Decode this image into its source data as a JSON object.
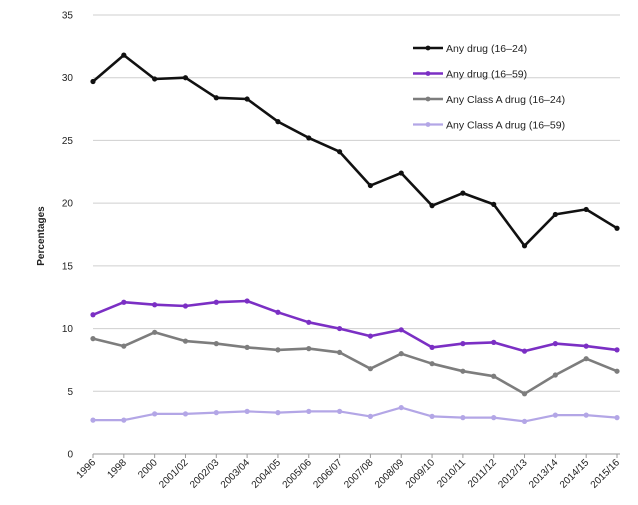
{
  "chart_data": {
    "type": "line",
    "ylabel": "Percentages",
    "ylim": [
      0,
      35
    ],
    "yticks": [
      0,
      5,
      10,
      15,
      20,
      25,
      30,
      35
    ],
    "grid": "horizontal",
    "legend_position": "top-right",
    "categories": [
      "1996",
      "1998",
      "2000",
      "2001/02",
      "2002/03",
      "2003/04",
      "2004/05",
      "2005/06",
      "2006/07",
      "2007/08",
      "2008/09",
      "2009/10",
      "2010/11",
      "2011/12",
      "2012/13",
      "2013/14",
      "2014/15",
      "2015/16"
    ],
    "series": [
      {
        "name": "Any drug (16–24)",
        "color": "#111111",
        "width": 2.6,
        "values": [
          29.7,
          31.8,
          29.9,
          30.0,
          28.4,
          28.3,
          26.5,
          25.2,
          24.1,
          21.4,
          22.4,
          19.8,
          20.8,
          19.9,
          16.6,
          19.1,
          19.5,
          18.0
        ]
      },
      {
        "name": "Any drug (16–59)",
        "color": "#7b2fc4",
        "width": 2.6,
        "values": [
          11.1,
          12.1,
          11.9,
          11.8,
          12.1,
          12.2,
          11.3,
          10.5,
          10.0,
          9.4,
          9.9,
          8.5,
          8.8,
          8.9,
          8.2,
          8.8,
          8.6,
          8.3
        ]
      },
      {
        "name": "Any Class A drug (16–24)",
        "color": "#7d7d7d",
        "width": 2.6,
        "values": [
          9.2,
          8.6,
          9.7,
          9.0,
          8.8,
          8.5,
          8.3,
          8.4,
          8.1,
          6.8,
          8.0,
          7.2,
          6.6,
          6.2,
          4.8,
          6.3,
          7.6,
          6.6
        ]
      },
      {
        "name": "Any Class A drug (16–59)",
        "color": "#b3a6e6",
        "width": 2.2,
        "values": [
          2.7,
          2.7,
          3.2,
          3.2,
          3.3,
          3.4,
          3.3,
          3.4,
          3.4,
          3.0,
          3.7,
          3.0,
          2.9,
          2.9,
          2.6,
          3.1,
          3.1,
          2.9
        ]
      }
    ]
  }
}
